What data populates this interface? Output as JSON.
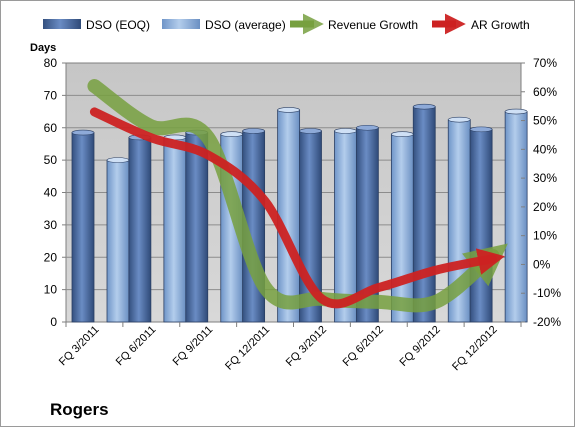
{
  "chart_data": {
    "type": "bar",
    "title": "Rogers",
    "ylabel": "Days",
    "categories": [
      "FQ 3/2011",
      "FQ 6/2011",
      "FQ 9/2011",
      "FQ 12/2011",
      "FQ 3/2012",
      "FQ 6/2012",
      "FQ 9/2012",
      "FQ 12/2012"
    ],
    "ylim": [
      0,
      80
    ],
    "y_ticks": [
      0,
      10,
      20,
      30,
      40,
      50,
      60,
      70,
      80
    ],
    "y2lim": [
      -20,
      70
    ],
    "y2_ticks": [
      "-20%",
      "-10%",
      "0%",
      "10%",
      "20%",
      "30%",
      "40%",
      "50%",
      "60%",
      "70%"
    ],
    "y2_tick_values": [
      -20,
      -10,
      0,
      10,
      20,
      30,
      40,
      50,
      60,
      70
    ],
    "bar_series": [
      {
        "name": "DSO (EOQ)",
        "color": "#4f6fa6",
        "values": [
          58.5,
          57,
          58.5,
          59,
          59,
          60,
          66.5,
          59.5
        ]
      },
      {
        "name": "DSO (average)",
        "color": "#7fa6d8",
        "values": [
          50,
          57,
          58,
          65.5,
          59,
          58,
          62.5,
          65
        ]
      }
    ],
    "line_series": [
      {
        "name": "Revenue Growth",
        "color": "#77a040",
        "axis": "y2",
        "values": [
          62,
          48,
          44,
          -8,
          -12,
          -13,
          -13,
          3
        ]
      },
      {
        "name": "AR Growth",
        "color": "#cc2222",
        "axis": "y2",
        "values": [
          53,
          44,
          38,
          22,
          -12,
          -8,
          -2,
          2
        ]
      }
    ],
    "legend_position": "top",
    "grid": true
  }
}
